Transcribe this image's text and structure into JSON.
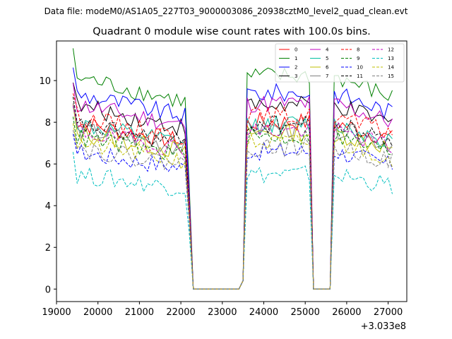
{
  "chart_data": {
    "type": "line",
    "suptitle": "Data file: modeM0/AS1A05_227T03_9000003086_20938cztM0_level2_quad_clean.evt",
    "title": "Quadrant 0 module wise count rates with 100.0s bins.",
    "x_offset_label": "+3.033e8",
    "xlim": [
      19000,
      27450
    ],
    "ylim": [
      -0.6,
      11.9
    ],
    "x_ticks": [
      19000,
      20000,
      21000,
      22000,
      23000,
      24000,
      25000,
      26000,
      27000
    ],
    "y_ticks": [
      0,
      2,
      4,
      6,
      8,
      10
    ],
    "x_start": 19400,
    "x_step": 100,
    "grid": false,
    "legend_position": "top-right",
    "series": [
      {
        "name": "0",
        "color": "#ff0000",
        "dash": "solid",
        "base": 8.0
      },
      {
        "name": "1",
        "color": "#008000",
        "dash": "solid",
        "base": 10.2
      },
      {
        "name": "2",
        "color": "#0000ff",
        "dash": "solid",
        "base": 9.4
      },
      {
        "name": "3",
        "color": "#000000",
        "dash": "solid",
        "base": 8.8
      },
      {
        "name": "4",
        "color": "#c000c0",
        "dash": "solid",
        "base": 8.9
      },
      {
        "name": "5",
        "color": "#00bfa0",
        "dash": "solid",
        "base": 7.9
      },
      {
        "name": "6",
        "color": "#bfbf00",
        "dash": "solid",
        "base": 7.5
      },
      {
        "name": "7",
        "color": "#808080",
        "dash": "solid",
        "base": 7.7
      },
      {
        "name": "8",
        "color": "#ff0000",
        "dash": "dashed",
        "base": 8.3
      },
      {
        "name": "9",
        "color": "#008000",
        "dash": "dashed",
        "base": 7.3
      },
      {
        "name": "10",
        "color": "#0000ff",
        "dash": "dashed",
        "base": 6.6
      },
      {
        "name": "11",
        "color": "#000000",
        "dash": "dashed",
        "base": 7.9
      },
      {
        "name": "12",
        "color": "#c000c0",
        "dash": "dashed",
        "base": 7.6
      },
      {
        "name": "13",
        "color": "#00bfbf",
        "dash": "dashed",
        "base": 5.5
      },
      {
        "name": "14",
        "color": "#bfbf00",
        "dash": "dashed",
        "base": 7.0
      },
      {
        "name": "15",
        "color": "#808080",
        "dash": "dashed",
        "base": 6.8
      }
    ],
    "segments": [
      {
        "label": "segment-1",
        "x_from": 19400,
        "x_to": 22100,
        "level": "on",
        "decline": 0.12
      },
      {
        "label": "gap-1-fall",
        "x_from": 22100,
        "x_to": 22300,
        "level": "fall"
      },
      {
        "label": "gap-1",
        "x_from": 22300,
        "x_to": 23400,
        "level": "zero"
      },
      {
        "label": "gap-1-rise",
        "x_from": 23400,
        "x_to": 23600,
        "level": "rise"
      },
      {
        "label": "segment-2",
        "x_from": 23600,
        "x_to": 25100,
        "level": "on",
        "decline": 0.0
      },
      {
        "label": "gap-2-fall",
        "x_from": 25100,
        "x_to": 25200,
        "level": "fall"
      },
      {
        "label": "gap-2",
        "x_from": 25200,
        "x_to": 25600,
        "level": "zero"
      },
      {
        "label": "gap-2-rise",
        "x_from": 25600,
        "x_to": 25700,
        "level": "rise"
      },
      {
        "label": "segment-3",
        "x_from": 25700,
        "x_to": 27100,
        "level": "on",
        "decline": 0.1
      }
    ]
  }
}
